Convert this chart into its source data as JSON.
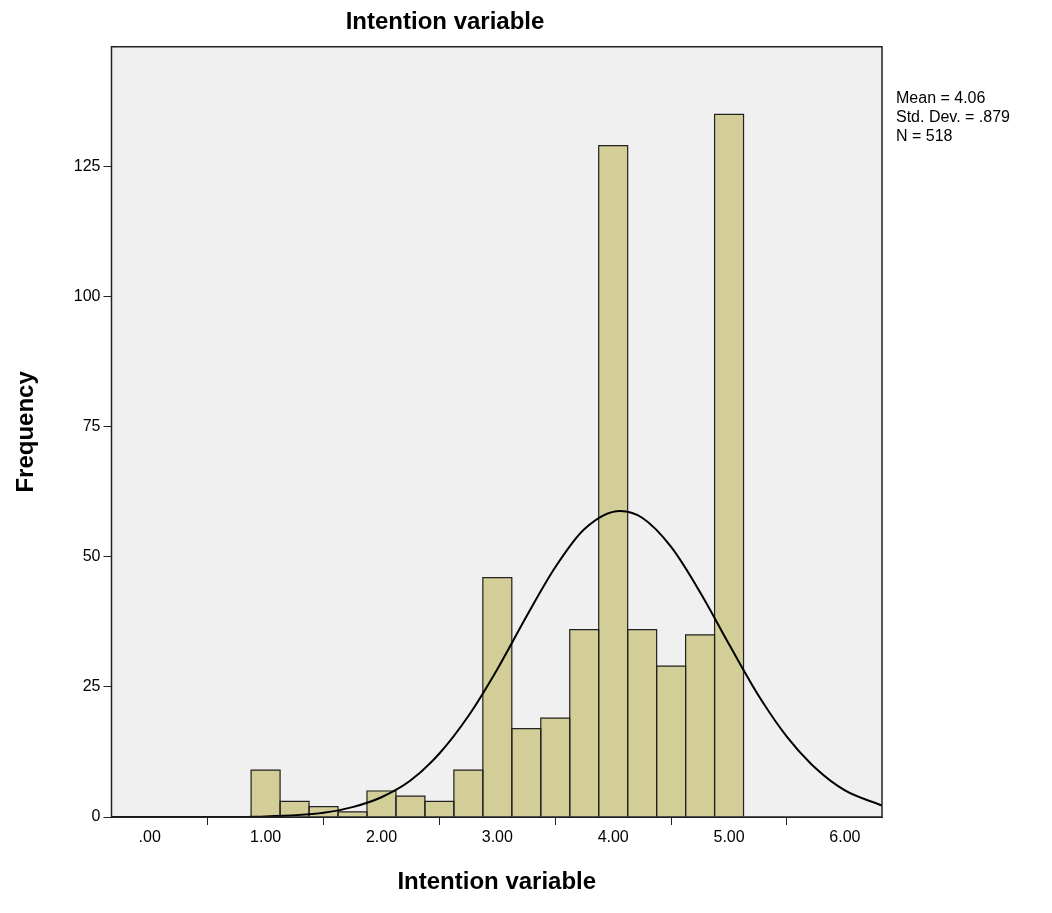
{
  "chart_data": {
    "type": "histogram",
    "title": "Intention variable",
    "xlabel": "Intention variable",
    "ylabel": "Frequency",
    "bins": [
      0.875,
      1.125,
      1.375,
      1.625,
      1.875,
      2.125,
      2.375,
      2.625,
      2.875,
      3.125,
      3.375,
      3.625,
      3.875,
      4.125,
      4.375,
      4.625,
      4.875,
      5.125
    ],
    "series": [
      {
        "type": "histogram",
        "color": "#d3ce97",
        "values": [
          9,
          3,
          2,
          1,
          5,
          4,
          3,
          9,
          46,
          17,
          19,
          36,
          129,
          36,
          29,
          35,
          135
        ]
      },
      {
        "type": "line",
        "color": "#000000",
        "marker": "none",
        "x": [
          -0.33,
          0.5,
          1,
          1.5,
          1.75,
          2,
          2.25,
          2.5,
          2.75,
          3,
          3.25,
          3.5,
          3.75,
          4.06,
          4.25,
          4.5,
          4.75,
          5,
          5.25,
          5.5,
          5.75,
          6,
          6.32
        ],
        "values": [
          0,
          0,
          0.1,
          0.8,
          1.9,
          3.8,
          7,
          12.2,
          19.4,
          28.4,
          38.5,
          48,
          55.3,
          58.8,
          57.5,
          51.9,
          43.2,
          33.2,
          23.5,
          15.4,
          9.3,
          5.1,
          2.2
        ]
      }
    ],
    "xlim": [
      -0.33,
      6.32
    ],
    "ylim": [
      0,
      148
    ],
    "xticks": [
      {
        "value": 0,
        "label": ".00"
      },
      {
        "value": 1,
        "label": "1.00"
      },
      {
        "value": 2,
        "label": "2.00"
      },
      {
        "value": 3,
        "label": "3.00"
      },
      {
        "value": 4,
        "label": "4.00"
      },
      {
        "value": 5,
        "label": "5.00"
      },
      {
        "value": 6,
        "label": "6.00"
      }
    ],
    "yticks": [
      0,
      25,
      50,
      75,
      100,
      125
    ],
    "annotations": [
      "Mean = 4.06",
      "Std. Dev. = .879",
      "N = 518"
    ]
  }
}
